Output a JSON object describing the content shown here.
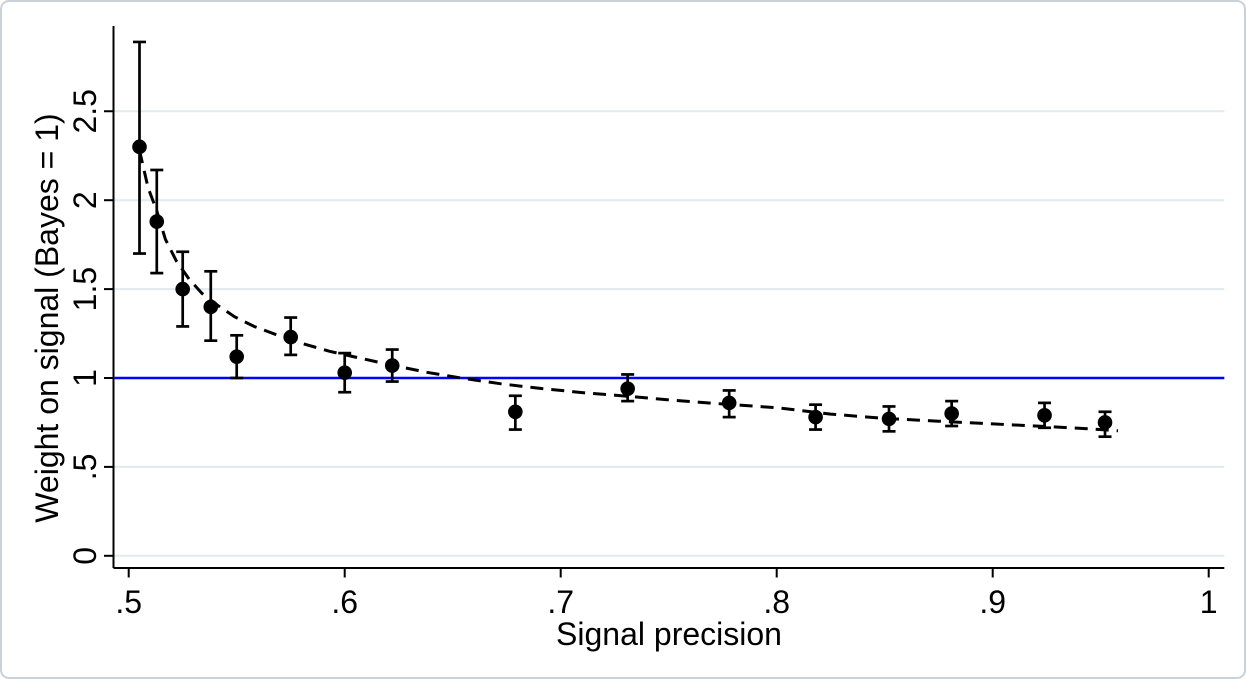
{
  "chart_data": {
    "type": "scatter",
    "title": "",
    "xlabel": "Signal precision",
    "ylabel": "Weight on signal (Bayes = 1)",
    "xlim": [
      0.493,
      1.007
    ],
    "ylim": [
      -0.07,
      2.98
    ],
    "x_ticks": [
      0.5,
      0.6,
      0.7,
      0.8,
      0.9,
      1
    ],
    "x_tick_labels": [
      ".5",
      ".6",
      ".7",
      ".8",
      ".9",
      "1"
    ],
    "y_ticks": [
      0,
      0.5,
      1,
      1.5,
      2,
      2.5
    ],
    "y_tick_labels": [
      "0",
      ".5",
      "1",
      "1.5",
      "2",
      "2.5"
    ],
    "grid": "horizontal-only",
    "legend": "none",
    "reference_line": {
      "y": 1,
      "color": "#0000ff"
    },
    "series": [
      {
        "name": "estimates-with-ci",
        "type": "scatter",
        "marker": "filled-circle",
        "color": "#000000",
        "error_bars": true,
        "points": [
          {
            "x": 0.505,
            "y": 2.3,
            "ci_low": 1.7,
            "ci_high": 2.89
          },
          {
            "x": 0.513,
            "y": 1.88,
            "ci_low": 1.59,
            "ci_high": 2.17
          },
          {
            "x": 0.525,
            "y": 1.5,
            "ci_low": 1.29,
            "ci_high": 1.71
          },
          {
            "x": 0.538,
            "y": 1.4,
            "ci_low": 1.21,
            "ci_high": 1.6
          },
          {
            "x": 0.55,
            "y": 1.12,
            "ci_low": 1.0,
            "ci_high": 1.24
          },
          {
            "x": 0.575,
            "y": 1.23,
            "ci_low": 1.13,
            "ci_high": 1.34
          },
          {
            "x": 0.6,
            "y": 1.03,
            "ci_low": 0.92,
            "ci_high": 1.14
          },
          {
            "x": 0.622,
            "y": 1.07,
            "ci_low": 0.98,
            "ci_high": 1.16
          },
          {
            "x": 0.679,
            "y": 0.81,
            "ci_low": 0.71,
            "ci_high": 0.9
          },
          {
            "x": 0.731,
            "y": 0.94,
            "ci_low": 0.87,
            "ci_high": 1.02
          },
          {
            "x": 0.778,
            "y": 0.86,
            "ci_low": 0.78,
            "ci_high": 0.93
          },
          {
            "x": 0.818,
            "y": 0.78,
            "ci_low": 0.71,
            "ci_high": 0.85
          },
          {
            "x": 0.852,
            "y": 0.77,
            "ci_low": 0.7,
            "ci_high": 0.84
          },
          {
            "x": 0.881,
            "y": 0.8,
            "ci_low": 0.73,
            "ci_high": 0.87
          },
          {
            "x": 0.924,
            "y": 0.79,
            "ci_low": 0.72,
            "ci_high": 0.86
          },
          {
            "x": 0.952,
            "y": 0.75,
            "ci_low": 0.67,
            "ci_high": 0.81
          }
        ]
      },
      {
        "name": "fitted-curve",
        "type": "line",
        "style": "dashed",
        "color": "#000000",
        "points": [
          [
            0.505,
            2.28
          ],
          [
            0.509,
            2.07
          ],
          [
            0.513,
            1.94
          ],
          [
            0.517,
            1.78
          ],
          [
            0.522,
            1.66
          ],
          [
            0.528,
            1.555
          ],
          [
            0.534,
            1.475
          ],
          [
            0.541,
            1.41
          ],
          [
            0.549,
            1.345
          ],
          [
            0.558,
            1.29
          ],
          [
            0.568,
            1.245
          ],
          [
            0.58,
            1.195
          ],
          [
            0.593,
            1.15
          ],
          [
            0.607,
            1.112
          ],
          [
            0.622,
            1.072
          ],
          [
            0.638,
            1.032
          ],
          [
            0.655,
            0.998
          ],
          [
            0.672,
            0.968
          ],
          [
            0.69,
            0.942
          ],
          [
            0.71,
            0.918
          ],
          [
            0.73,
            0.898
          ],
          [
            0.752,
            0.875
          ],
          [
            0.775,
            0.854
          ],
          [
            0.8,
            0.833
          ],
          [
            0.825,
            0.797
          ],
          [
            0.85,
            0.773
          ],
          [
            0.875,
            0.757
          ],
          [
            0.9,
            0.742
          ],
          [
            0.925,
            0.727
          ],
          [
            0.945,
            0.714
          ],
          [
            0.958,
            0.703
          ]
        ]
      }
    ],
    "colors": {
      "grid": "#e0eaef",
      "axis": "#000000",
      "marker": "#000000",
      "reference": "#0000ff",
      "background": "#ffffff",
      "border": "#c9d2d8"
    }
  }
}
